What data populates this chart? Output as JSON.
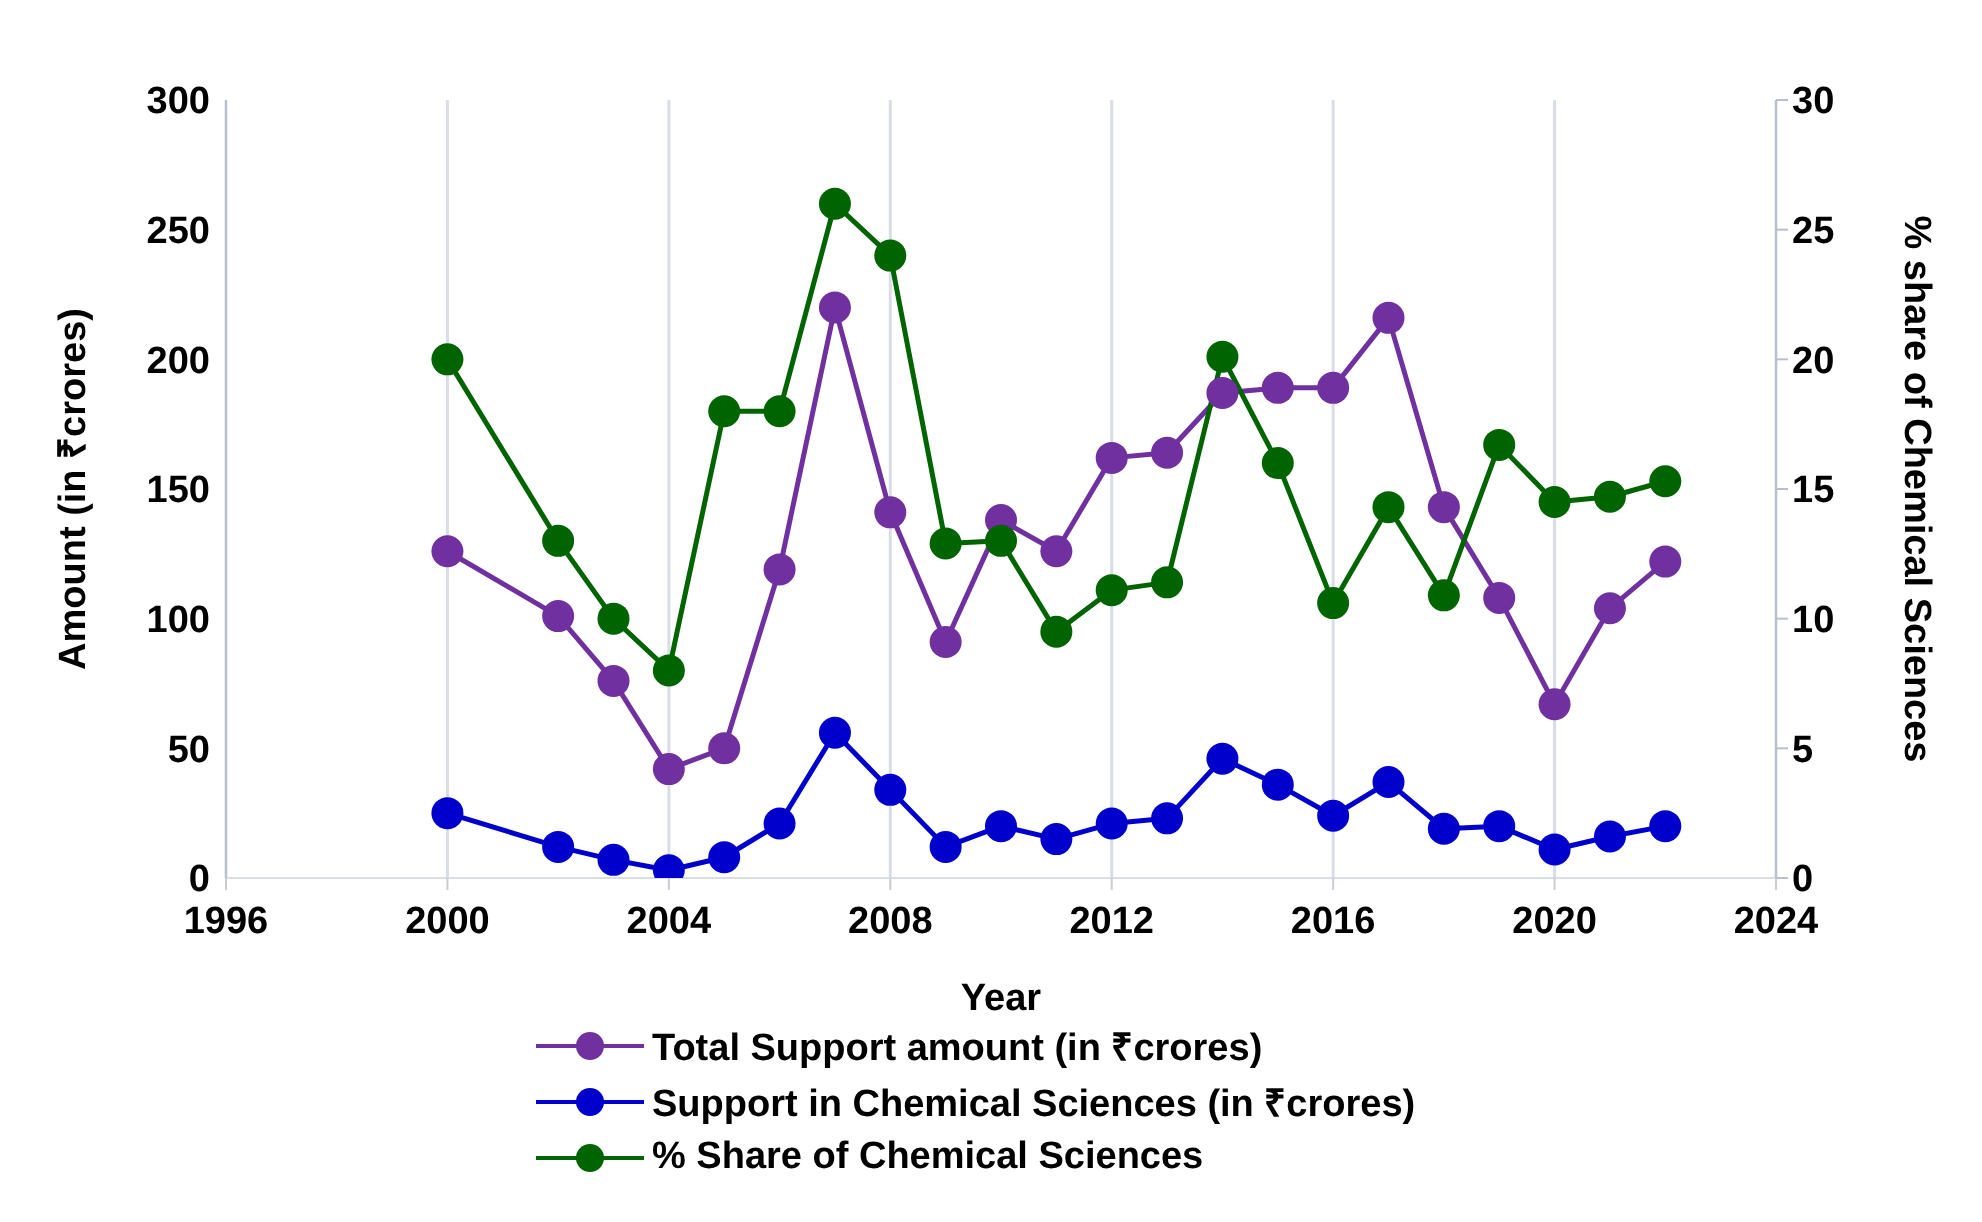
{
  "chart_data": {
    "type": "line",
    "xlabel": "Year",
    "ylabel": "Amount (in ₹crores)",
    "y2label": "% share of Chemical Sciences",
    "x": [
      2000,
      2002,
      2003,
      2004,
      2005,
      2006,
      2007,
      2008,
      2009,
      2010,
      2011,
      2012,
      2013,
      2014,
      2015,
      2016,
      2017,
      2018,
      2019,
      2020,
      2021,
      2022
    ],
    "series": [
      {
        "name": "Total Support amount (in ₹crores)",
        "color": "#7030a0",
        "values": [
          126,
          101,
          76,
          42,
          50,
          119,
          220,
          141,
          91,
          138,
          126,
          162,
          164,
          187,
          189,
          189,
          216,
          143,
          108,
          67,
          104,
          122
        ]
      },
      {
        "name": "Support in Chemical Sciences (in ₹crores)",
        "color": "#0000cc",
        "values": [
          25,
          12,
          7,
          3,
          8,
          21,
          56,
          34,
          12,
          20,
          15,
          21,
          23,
          46,
          36,
          24,
          37,
          19,
          20,
          11,
          16,
          20
        ]
      },
      {
        "name": "% Share of Chemical Sciences",
        "color": "#006400",
        "axis": "y2",
        "values": [
          20,
          13,
          10,
          8,
          18,
          18,
          26,
          24,
          12.9,
          13,
          9.5,
          11.1,
          11.4,
          20.1,
          16,
          10.6,
          14.3,
          10.9,
          16.7,
          14.5,
          14.7,
          15.3
        ]
      }
    ],
    "xlim": [
      1996,
      2024
    ],
    "xticks": [
      1996,
      2000,
      2004,
      2008,
      2012,
      2016,
      2020,
      2024
    ],
    "ylim": [
      0,
      300
    ],
    "yticks": [
      0,
      50,
      100,
      150,
      200,
      250,
      300
    ],
    "y2lim": [
      0,
      30
    ],
    "y2ticks": [
      0,
      5,
      10,
      15,
      20,
      25,
      30
    ],
    "grid": true,
    "legend": "bottom",
    "marker": "circle",
    "line_style": "solid"
  }
}
